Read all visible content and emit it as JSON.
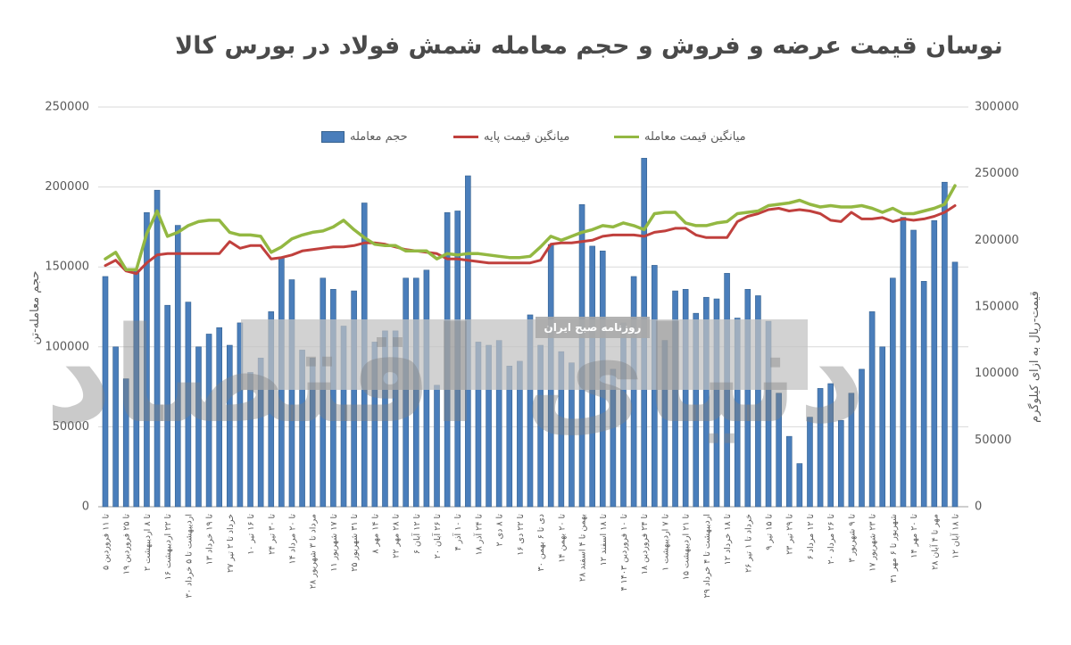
{
  "chart": {
    "title": "نوسان قیمت عرضه و فروش و حجم معامله شمش فولاد در بورس کالا",
    "legend": [
      {
        "label": "حجم معامله",
        "color": "#4a7ebb",
        "marker": "bar"
      },
      {
        "label": "میانگین قیمت پایه",
        "color": "#c0403d",
        "marker": "line"
      },
      {
        "label": "میانگین قیمت معامله",
        "color": "#93b842",
        "marker": "line"
      }
    ],
    "left_axis": {
      "title": "حجم معامله-تن",
      "ticks": [
        0,
        50000,
        100000,
        150000,
        200000,
        250000
      ],
      "max": 250000
    },
    "right_axis": {
      "title": "قیمت-ریال به ازای کیلوگرم",
      "ticks": [
        0,
        50000,
        100000,
        150000,
        200000,
        250000,
        300000
      ],
      "max": 300000
    },
    "watermark": {
      "logo": "دنیای اقتصاد",
      "badge": "روزنامه صبح ایران"
    }
  },
  "chart_data": {
    "type": "bar",
    "combo": "bar+line",
    "title": "نوسان قیمت عرضه و فروش و حجم معامله شمش فولاد در بورس کالا",
    "xlabel": "",
    "ylabel_left": "حجم معامله-تن",
    "ylabel_right": "قیمت-ریال به ازای کیلوگرم",
    "ylim_left": [
      0,
      250000
    ],
    "ylim_right": [
      0,
      300000
    ],
    "grid": true,
    "legend_position": "top",
    "x_labels_every_n_bars": 2,
    "categories": [
      "۵ تا ۱۱ فروردین",
      "۱۹ تا ۲۵ فروردین",
      "۲ تا ۸ اردیبهشت",
      "۱۶ تا ۲۲ اردیبهشت",
      "۳۰ اردیبهشت تا ۵ خرداد",
      "۱۳ تا ۱۹ خرداد",
      "۲۷ خرداد تا ۲ تیر",
      "۱۰ تا ۱۶ تیر",
      "۲۴ تا ۳۰ تیر",
      "۱۴ تا ۲۰ مرداد",
      "۲۸ مرداد تا ۳ شهریور",
      "۱۱ تا ۱۷ شهریور",
      "۲۵ تا ۳۱ شهریور",
      "۸ تا ۱۴ مهر",
      "۲۲ تا ۲۸ مهر",
      "۶ تا ۱۲ آبان",
      "۲۰ تا ۲۶ آبان",
      "۴ تا ۱۰ آذر",
      "۱۸ تا ۲۴ آذر",
      "۲ تا ۸ دی",
      "۱۶ تا ۲۲ دی",
      "۳۰ دی تا ۶ بهمن",
      "۱۴ تا ۲۰ بهمن",
      "۲۸ بهمن تا ۴ اسفند",
      "۱۲ تا ۱۸ اسفند",
      "۴ تا ۱۰ فروردین ۱۴۰۳",
      "۱۸ تا ۲۴ فروردین",
      "۱ تا ۷ اردیبهشت",
      "۱۵ تا ۲۱ اردیبهشت",
      "۲۹ اردیبهشت تا ۴ خرداد",
      "۱۲ تا ۱۸ خرداد",
      "۲۶ خرداد تا ۱ تیر",
      "۹ تا ۱۵ تیر",
      "۲۳ تا ۲۹ تیر",
      "۶ تا ۱۲ مرداد",
      "۲۰ تا ۲۶ مرداد",
      "۳ تا ۹ شهریور",
      "۱۷ تا ۲۳ شهریور",
      "۳۱ شهریور تا ۶ مهر",
      "۱۴ تا ۲۰ مهر",
      "۲۸ مهر تا ۴ آبان",
      "۱۲ تا ۱۸ آبان"
    ],
    "series": [
      {
        "name": "حجم معامله",
        "type": "bar",
        "axis": "left",
        "color": "#4a7ebb",
        "values": [
          144000,
          100000,
          80000,
          148000,
          184000,
          198000,
          126000,
          176000,
          128000,
          100000,
          108000,
          112000,
          101000,
          115000,
          84000,
          93000,
          122000,
          156000,
          142000,
          98000,
          93000,
          143000,
          136000,
          113000,
          135000,
          190000,
          103000,
          110000,
          110000,
          143000,
          143000,
          148000,
          76000,
          184000,
          185000,
          207000,
          103000,
          101000,
          104000,
          88000,
          91000,
          120000,
          101000,
          164000,
          97000,
          90000,
          189000,
          163000,
          160000,
          86000,
          115000,
          144000,
          218000,
          151000,
          104000,
          135000,
          136000,
          121000,
          131000,
          130000,
          146000,
          118000,
          136000,
          132000,
          116000,
          71000,
          44000,
          27000,
          56000,
          74000,
          77000,
          54000,
          71000,
          86000,
          122000,
          100000,
          143000,
          181000,
          173000,
          141000,
          179000,
          203000,
          153000
        ]
      },
      {
        "name": "میانگین قیمت پایه",
        "type": "line",
        "axis": "right",
        "color": "#c0403d",
        "values": [
          181000,
          185000,
          177000,
          175000,
          183000,
          189000,
          190000,
          190000,
          190000,
          190000,
          190000,
          190000,
          199000,
          194000,
          196000,
          196000,
          186000,
          187000,
          189000,
          192000,
          193000,
          194000,
          195000,
          195000,
          196000,
          198000,
          198000,
          197000,
          195000,
          193000,
          192000,
          191000,
          190000,
          186000,
          186000,
          185000,
          184000,
          183000,
          183000,
          183000,
          183000,
          183000,
          185000,
          197000,
          198000,
          198000,
          199000,
          200000,
          203000,
          204000,
          204000,
          204000,
          203000,
          206000,
          207000,
          209000,
          209000,
          204000,
          202000,
          202000,
          202000,
          214000,
          218000,
          220000,
          223000,
          224000,
          222000,
          223000,
          222000,
          220000,
          215000,
          214000,
          221000,
          216000,
          216000,
          217000,
          214000,
          216000,
          215000,
          216000,
          218000,
          221000,
          226000
        ]
      },
      {
        "name": "میانگین قیمت معامله",
        "type": "line",
        "axis": "right",
        "color": "#93b842",
        "values": [
          186000,
          191000,
          178000,
          178000,
          205000,
          222000,
          203000,
          206000,
          211000,
          214000,
          215000,
          215000,
          206000,
          204000,
          204000,
          203000,
          191000,
          195000,
          201000,
          204000,
          206000,
          207000,
          210000,
          215000,
          208000,
          202000,
          197000,
          196000,
          196000,
          192000,
          192000,
          192000,
          186000,
          190000,
          189000,
          190000,
          190000,
          189000,
          188000,
          187000,
          187000,
          188000,
          195000,
          203000,
          200000,
          203000,
          206000,
          208000,
          211000,
          210000,
          213000,
          211000,
          208000,
          220000,
          221000,
          221000,
          213000,
          211000,
          211000,
          213000,
          214000,
          220000,
          221000,
          222000,
          226000,
          227000,
          228000,
          230000,
          227000,
          225000,
          226000,
          225000,
          225000,
          226000,
          224000,
          221000,
          224000,
          220000,
          220000,
          222000,
          224000,
          227000,
          241000
        ]
      }
    ]
  }
}
